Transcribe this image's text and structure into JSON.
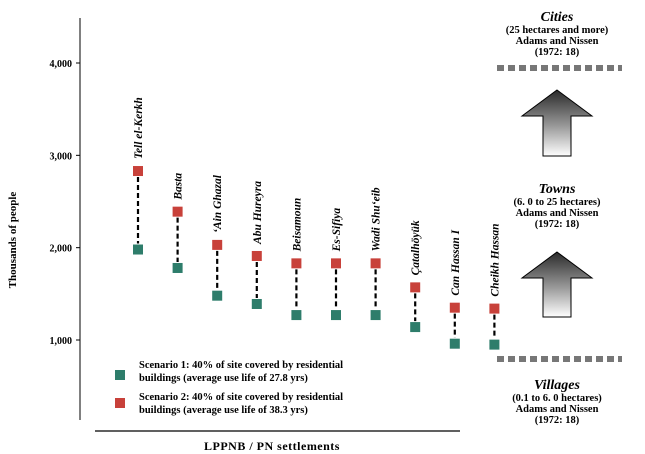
{
  "chart_data": {
    "type": "scatter",
    "ylabel": "Thousands of people",
    "xlabel": "LPPNB / PN settlements",
    "y_ticks": [
      "1,000",
      "2,000",
      "3,000",
      "4,000"
    ],
    "ylim": [
      0,
      4400
    ],
    "categories": [
      "Tell el-Kerkh",
      "Basta",
      "‘Ain Ghazal",
      "Abu Hureyra",
      "Beisamoun",
      "Es-Sifiya",
      "Wadi Shu‘eib",
      "Çatalhöyük",
      "Can Hassan I",
      "Cheikh Hassan"
    ],
    "series": [
      {
        "name": "Scenario 1: 40% of site covered by residential buildings (average use life of 27.8 yrs)",
        "color": "#2e7d6b",
        "values": [
          1980,
          1780,
          1480,
          1390,
          1270,
          1270,
          1270,
          1140,
          960,
          950
        ]
      },
      {
        "name": "Scenario 2: 40% of site covered by residential buildings (average use life of 38.3 yrs)",
        "color": "#c8413a",
        "values": [
          2830,
          2390,
          2030,
          1910,
          1830,
          1830,
          1830,
          1570,
          1350,
          1340
        ]
      }
    ],
    "legend": [
      {
        "line1": "Scenario 1: 40% of site covered by residential",
        "line2": "buildings (average use life of 27.8 yrs)"
      },
      {
        "line1": "Scenario 2: 40% of site covered by residential",
        "line2": "buildings (average use life of 38.3 yrs)"
      }
    ]
  },
  "settlement_scale": [
    {
      "name": "Cities",
      "range": "(25 hectares and more)",
      "source": "Adams and Nissen",
      "ref": "(1972: 18)"
    },
    {
      "name": "Towns",
      "range": "(6. 0 to 25 hectares)",
      "source": "Adams and Nissen",
      "ref": "(1972: 18)"
    },
    {
      "name": "Villages",
      "range": "(0.1 to 6. 0 hectares)",
      "source": "Adams and Nissen",
      "ref": "(1972: 18)"
    }
  ],
  "colors": {
    "scenario1": "#2e7d6b",
    "scenario2": "#c8413a",
    "arrow_dark": "#333333",
    "arrow_light": "#ffffff",
    "dash": "#777777"
  }
}
